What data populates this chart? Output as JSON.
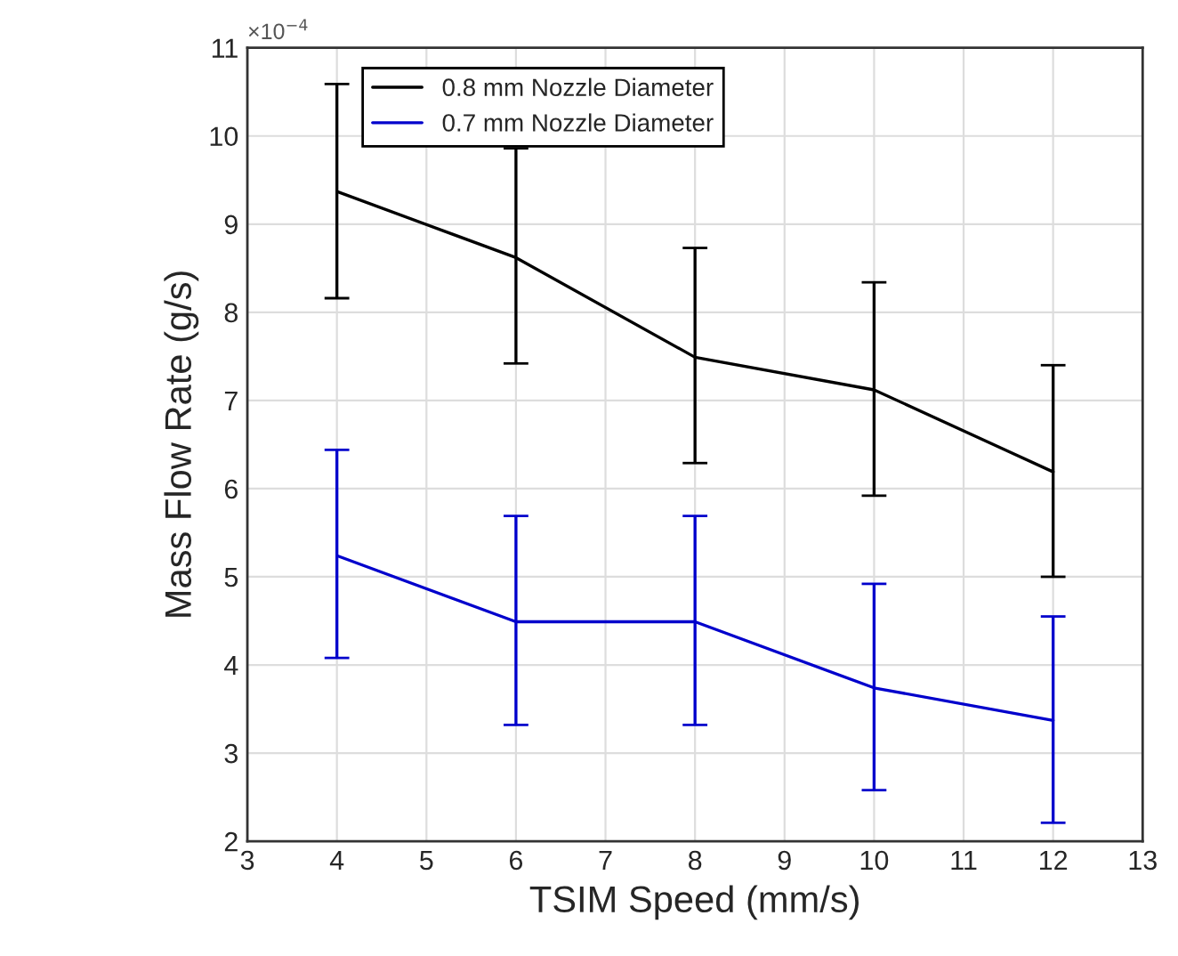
{
  "chart_data": {
    "type": "line",
    "xlabel": "TSIM Speed (mm/s)",
    "ylabel": "Mass Flow Rate (g/s)",
    "annotations": [
      "×10$^{−4}$"
    ],
    "x": [
      4,
      6,
      8,
      10,
      12
    ],
    "series": [
      {
        "name": "0.8 mm Nozzle Diameter",
        "color": "#000000",
        "values": [
          9.37,
          8.62,
          7.49,
          7.12,
          6.19
        ],
        "errors": [
          [
            8.16,
            10.59
          ],
          [
            7.42,
            9.86
          ],
          [
            6.29,
            8.73
          ],
          [
            5.92,
            8.34
          ],
          [
            5.0,
            7.4
          ]
        ]
      },
      {
        "name": "0.7 mm Nozzle Diameter",
        "color": "#0000cc",
        "values": [
          5.24,
          4.49,
          4.49,
          3.74,
          3.37
        ],
        "errors": [
          [
            4.08,
            6.44
          ],
          [
            3.32,
            5.69
          ],
          [
            3.32,
            5.69
          ],
          [
            2.58,
            4.92
          ],
          [
            2.21,
            4.55
          ]
        ]
      }
    ],
    "xlim": [
      3,
      13
    ],
    "xticks": [
      3,
      4,
      5,
      6,
      7,
      8,
      9,
      10,
      11,
      12,
      13
    ],
    "ylim": [
      2,
      11
    ],
    "yticks": [
      2,
      3,
      4,
      5,
      6,
      7,
      8,
      9,
      10,
      11
    ],
    "grid": true,
    "legend": "top left",
    "marker": "none",
    "line_style": "solid"
  }
}
